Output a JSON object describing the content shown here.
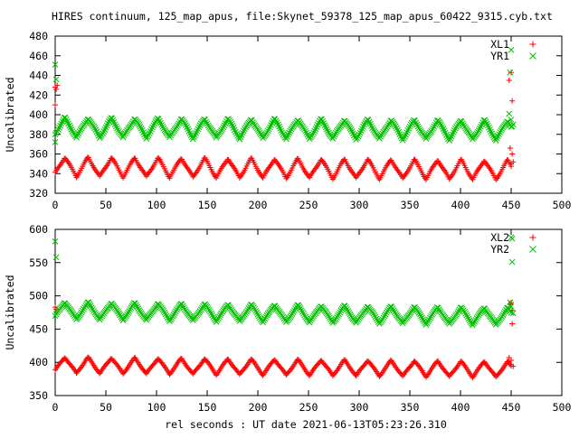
{
  "title": "HIRES continuum, 125_map_apus, file:Skynet_59378_125_map_apus_60422_9315.cyb.txt",
  "xlabel": "rel seconds : UT date 2021-06-13T05:23:26.310",
  "colors": {
    "red": "#ff0000",
    "green": "#00c000"
  },
  "chart_data": [
    {
      "type": "scatter",
      "ylabel": "Uncalibrated",
      "xlim": [
        0,
        500
      ],
      "ylim": [
        320,
        480
      ],
      "xticks": [
        0,
        50,
        100,
        150,
        200,
        250,
        300,
        350,
        400,
        450,
        500
      ],
      "yticks": [
        320,
        340,
        360,
        380,
        400,
        420,
        440,
        460,
        480
      ],
      "legend_position": "top-right",
      "series": [
        {
          "name": "XL1",
          "marker": "plus",
          "color": "#ff0000",
          "base": 347,
          "amplitude": 10,
          "period": 23,
          "trend": -0.007,
          "x_range": [
            0,
            450
          ],
          "step": 1,
          "outliers": [
            [
              0,
              428
            ],
            [
              1,
              426
            ],
            [
              2,
              430
            ],
            [
              0,
              410
            ],
            [
              450,
              443
            ],
            [
              448,
              435
            ],
            [
              451,
              414
            ],
            [
              449,
              366
            ],
            [
              451,
              360
            ],
            [
              452,
              352
            ],
            [
              450,
              350
            ]
          ]
        },
        {
          "name": "YR1",
          "marker": "cross",
          "color": "#00c000",
          "base": 387,
          "amplitude": 10,
          "period": 23,
          "trend": -0.006,
          "x_range": [
            0,
            450
          ],
          "step": 1,
          "outliers": [
            [
              0,
              451
            ],
            [
              1,
              436
            ],
            [
              0,
              372
            ],
            [
              450,
              466
            ],
            [
              449,
              443
            ],
            [
              448,
              401
            ],
            [
              450,
              395
            ],
            [
              452,
              390
            ],
            [
              451,
              388
            ]
          ]
        }
      ]
    },
    {
      "type": "scatter",
      "ylabel": "Uncalibrated",
      "xlim": [
        0,
        500
      ],
      "ylim": [
        350,
        600
      ],
      "xticks": [
        0,
        50,
        100,
        150,
        200,
        250,
        300,
        350,
        400,
        450,
        500
      ],
      "yticks": [
        350,
        400,
        450,
        500,
        550,
        600
      ],
      "legend_position": "top-right",
      "series": [
        {
          "name": "XL2",
          "marker": "plus",
          "color": "#ff0000",
          "base": 396,
          "amplitude": 12,
          "period": 23,
          "trend": -0.015,
          "x_range": [
            0,
            450
          ],
          "step": 1,
          "outliers": [
            [
              0,
              483
            ],
            [
              1,
              480
            ],
            [
              449,
              488
            ],
            [
              450,
              490
            ],
            [
              451,
              478
            ],
            [
              451,
              458
            ],
            [
              448,
              407
            ],
            [
              450,
              403
            ],
            [
              452,
              394
            ]
          ]
        },
        {
          "name": "YR2",
          "marker": "cross",
          "color": "#00c000",
          "base": 478,
          "amplitude": 13,
          "period": 23,
          "trend": -0.02,
          "x_range": [
            0,
            450
          ],
          "step": 1,
          "outliers": [
            [
              0,
              582
            ],
            [
              1,
              558
            ],
            [
              450,
              588
            ],
            [
              451,
              586
            ],
            [
              451,
              551
            ],
            [
              449,
              490
            ],
            [
              450,
              484
            ],
            [
              452,
              474
            ]
          ]
        }
      ]
    }
  ]
}
